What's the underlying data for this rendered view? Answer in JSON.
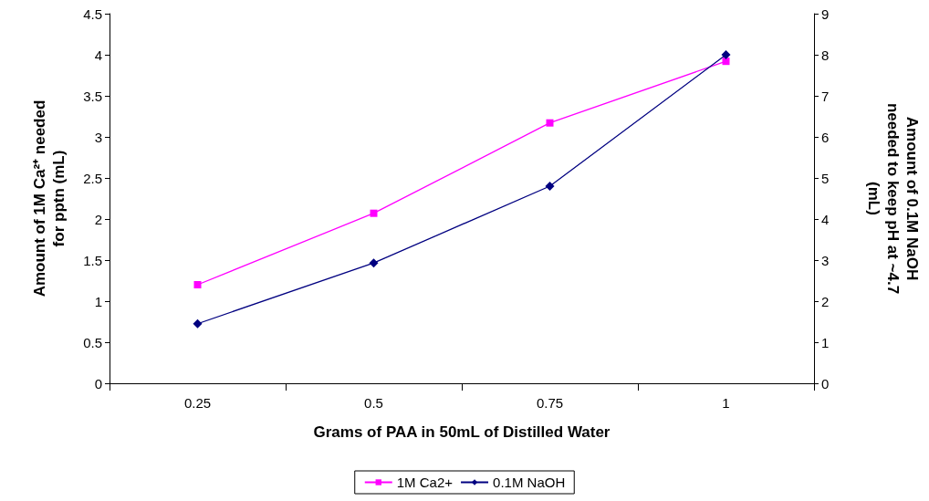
{
  "chart_data": {
    "type": "line",
    "xlabel": "Grams of PAA in 50mL of Distilled Water",
    "ylabel": "Amount of 1M Ca²⁺ needed\nfor pptn (mL)",
    "y2label": "Amount of 0.1M NaOH\nneeded to keep pH at ~4.7\n(mL)",
    "categories": [
      "0.25",
      "0.5",
      "0.75",
      "1"
    ],
    "series": [
      {
        "name": "1M Ca2+",
        "color": "#ff00ff",
        "marker": "square",
        "values": [
          1.2,
          2.07,
          3.17,
          3.92
        ]
      },
      {
        "name": "0.1M NaOH",
        "color": "#000080",
        "marker": "diamond",
        "axis": "y2",
        "values": [
          1.45,
          2.93,
          4.8,
          8.0
        ]
      }
    ],
    "ylim": [
      0,
      4.5
    ],
    "yticks": [
      0,
      0.5,
      1,
      1.5,
      2,
      2.5,
      3,
      3.5,
      4,
      4.5
    ],
    "y2lim": [
      0,
      9
    ],
    "y2ticks": [
      0,
      1,
      2,
      3,
      4,
      5,
      6,
      7,
      8,
      9
    ],
    "legend": "bottom"
  }
}
